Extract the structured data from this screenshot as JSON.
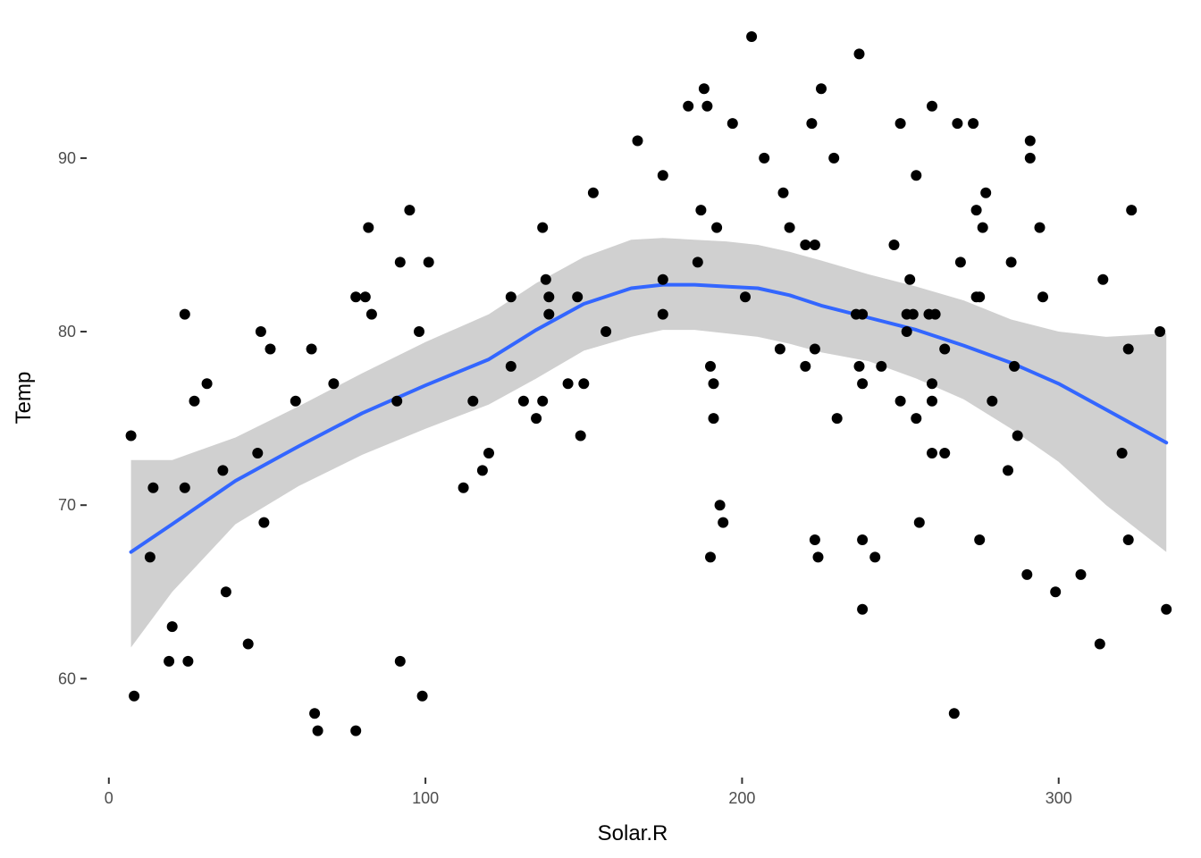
{
  "chart_data": {
    "type": "scatter",
    "title": "",
    "xlabel": "Solar.R",
    "ylabel": "Temp",
    "xlim": [
      -7,
      341
    ],
    "ylim": [
      54.3,
      98.7
    ],
    "x_ticks": [
      0,
      100,
      200,
      300
    ],
    "y_ticks": [
      60,
      70,
      80,
      90
    ],
    "x_tick_labels": [
      "0",
      "100",
      "200",
      "300"
    ],
    "y_tick_labels": [
      "60",
      "70",
      "80",
      "90"
    ],
    "grid": false,
    "colors": {
      "points": "#000000",
      "smooth": "#3366FF",
      "ribbon": "#c8c8c8",
      "tick_text": "#4d4d4d"
    },
    "points": [
      [
        7,
        74
      ],
      [
        8,
        59
      ],
      [
        13,
        67
      ],
      [
        14,
        71
      ],
      [
        19,
        61
      ],
      [
        20,
        63
      ],
      [
        24,
        81
      ],
      [
        24,
        71
      ],
      [
        25,
        61
      ],
      [
        27,
        76
      ],
      [
        31,
        77
      ],
      [
        36,
        72
      ],
      [
        37,
        65
      ],
      [
        44,
        62
      ],
      [
        47,
        73
      ],
      [
        48,
        80
      ],
      [
        49,
        69
      ],
      [
        51,
        79
      ],
      [
        59,
        76
      ],
      [
        64,
        79
      ],
      [
        65,
        58
      ],
      [
        66,
        57
      ],
      [
        71,
        77
      ],
      [
        78,
        82
      ],
      [
        78,
        57
      ],
      [
        81,
        82
      ],
      [
        82,
        86
      ],
      [
        83,
        81
      ],
      [
        91,
        76
      ],
      [
        92,
        61
      ],
      [
        92,
        84
      ],
      [
        95,
        87
      ],
      [
        98,
        80
      ],
      [
        99,
        59
      ],
      [
        101,
        84
      ],
      [
        112,
        71
      ],
      [
        115,
        76
      ],
      [
        118,
        72
      ],
      [
        120,
        73
      ],
      [
        127,
        82
      ],
      [
        127,
        78
      ],
      [
        131,
        76
      ],
      [
        135,
        75
      ],
      [
        137,
        86
      ],
      [
        137,
        76
      ],
      [
        138,
        83
      ],
      [
        139,
        82
      ],
      [
        139,
        81
      ],
      [
        145,
        77
      ],
      [
        148,
        82
      ],
      [
        149,
        74
      ],
      [
        150,
        77
      ],
      [
        153,
        88
      ],
      [
        157,
        80
      ],
      [
        167,
        91
      ],
      [
        175,
        89
      ],
      [
        175,
        83
      ],
      [
        175,
        81
      ],
      [
        183,
        93
      ],
      [
        186,
        84
      ],
      [
        187,
        87
      ],
      [
        188,
        94
      ],
      [
        189,
        93
      ],
      [
        190,
        78
      ],
      [
        190,
        67
      ],
      [
        191,
        77
      ],
      [
        191,
        75
      ],
      [
        192,
        86
      ],
      [
        193,
        70
      ],
      [
        194,
        69
      ],
      [
        197,
        92
      ],
      [
        201,
        82
      ],
      [
        203,
        97
      ],
      [
        207,
        90
      ],
      [
        212,
        79
      ],
      [
        213,
        88
      ],
      [
        215,
        86
      ],
      [
        220,
        85
      ],
      [
        220,
        78
      ],
      [
        222,
        92
      ],
      [
        223,
        85
      ],
      [
        223,
        79
      ],
      [
        223,
        68
      ],
      [
        224,
        67
      ],
      [
        225,
        94
      ],
      [
        229,
        90
      ],
      [
        230,
        75
      ],
      [
        236,
        81
      ],
      [
        237,
        96
      ],
      [
        237,
        78
      ],
      [
        238,
        81
      ],
      [
        238,
        77
      ],
      [
        238,
        68
      ],
      [
        238,
        64
      ],
      [
        242,
        67
      ],
      [
        244,
        78
      ],
      [
        248,
        85
      ],
      [
        250,
        92
      ],
      [
        250,
        76
      ],
      [
        252,
        81
      ],
      [
        252,
        80
      ],
      [
        253,
        83
      ],
      [
        254,
        81
      ],
      [
        255,
        89
      ],
      [
        255,
        75
      ],
      [
        256,
        69
      ],
      [
        259,
        81
      ],
      [
        260,
        93
      ],
      [
        260,
        77
      ],
      [
        260,
        76
      ],
      [
        260,
        73
      ],
      [
        261,
        81
      ],
      [
        264,
        79
      ],
      [
        264,
        73
      ],
      [
        267,
        58
      ],
      [
        268,
        92
      ],
      [
        269,
        84
      ],
      [
        273,
        92
      ],
      [
        274,
        87
      ],
      [
        274,
        82
      ],
      [
        275,
        82
      ],
      [
        275,
        68
      ],
      [
        276,
        86
      ],
      [
        277,
        88
      ],
      [
        279,
        76
      ],
      [
        284,
        72
      ],
      [
        285,
        84
      ],
      [
        286,
        78
      ],
      [
        287,
        74
      ],
      [
        290,
        66
      ],
      [
        291,
        91
      ],
      [
        291,
        90
      ],
      [
        294,
        86
      ],
      [
        295,
        82
      ],
      [
        299,
        65
      ],
      [
        307,
        66
      ],
      [
        313,
        62
      ],
      [
        314,
        83
      ],
      [
        320,
        73
      ],
      [
        322,
        79
      ],
      [
        322,
        68
      ],
      [
        323,
        87
      ],
      [
        332,
        80
      ],
      [
        334,
        64
      ]
    ],
    "smooth": {
      "x": [
        7,
        20,
        40,
        60,
        80,
        100,
        120,
        135,
        150,
        165,
        175,
        185,
        195,
        205,
        215,
        225,
        240,
        255,
        270,
        285,
        300,
        315,
        334
      ],
      "y": [
        67.3,
        68.9,
        71.4,
        73.4,
        75.3,
        76.9,
        78.4,
        80.1,
        81.6,
        82.5,
        82.7,
        82.7,
        82.6,
        82.5,
        82.1,
        81.5,
        80.8,
        80.1,
        79.2,
        78.2,
        77.0,
        75.5,
        73.6
      ],
      "lower": [
        61.8,
        65.0,
        68.9,
        71.1,
        72.9,
        74.4,
        75.8,
        77.3,
        78.9,
        79.7,
        80.1,
        80.1,
        79.9,
        79.7,
        79.3,
        78.8,
        78.3,
        77.3,
        76.1,
        74.4,
        72.5,
        70.0,
        67.3
      ],
      "upper": [
        72.6,
        72.6,
        73.9,
        75.7,
        77.6,
        79.4,
        81.0,
        82.8,
        84.3,
        85.3,
        85.4,
        85.3,
        85.2,
        85.0,
        84.6,
        84.1,
        83.3,
        82.6,
        81.8,
        80.7,
        80.0,
        79.7,
        79.9
      ]
    }
  }
}
